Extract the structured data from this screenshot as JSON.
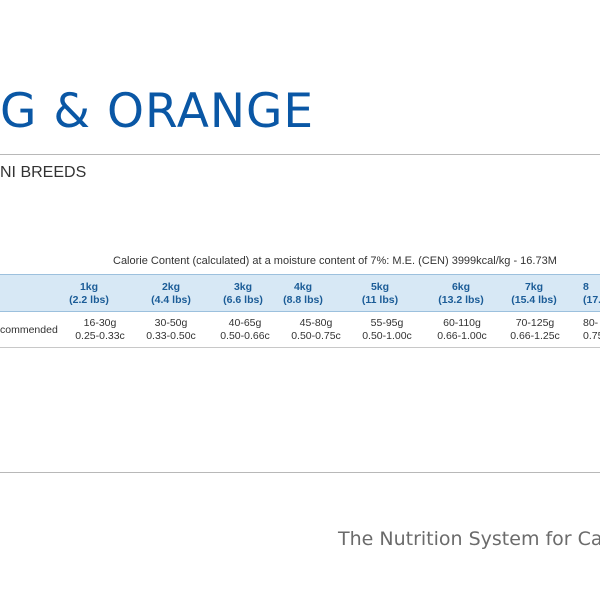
{
  "title": "G & ORANGE",
  "subtitle": "NI BREEDS",
  "calorie_content": "Calorie Content (calculated) at a moisture content of 7%: M.E. (CEN) 3999kcal/kg - 16.73M",
  "table": {
    "row_label": "commended",
    "columns": [
      {
        "weight": "1kg",
        "lbs": "(2.2 lbs)",
        "grams": "16-30g",
        "cups": "0.25-0.33c"
      },
      {
        "weight": "2kg",
        "lbs": "(4.4 lbs)",
        "grams": "30-50g",
        "cups": "0.33-0.50c"
      },
      {
        "weight": "3kg",
        "lbs": "(6.6 lbs)",
        "grams": "40-65g",
        "cups": "0.50-0.66c"
      },
      {
        "weight": "4kg",
        "lbs": "(8.8 lbs)",
        "grams": "45-80g",
        "cups": "0.50-0.75c"
      },
      {
        "weight": "5kg",
        "lbs": "(11 lbs)",
        "grams": "55-95g",
        "cups": "0.50-1.00c"
      },
      {
        "weight": "6kg",
        "lbs": "(13.2 lbs)",
        "grams": "60-110g",
        "cups": "0.66-1.00c"
      },
      {
        "weight": "7kg",
        "lbs": "(15.4 lbs)",
        "grams": "70-125g",
        "cups": "0.66-1.25c"
      },
      {
        "weight": "8",
        "lbs": "(17.",
        "grams": "80-",
        "cups": "0.75"
      }
    ]
  },
  "tagline": "The Nutrition System for Ca"
}
